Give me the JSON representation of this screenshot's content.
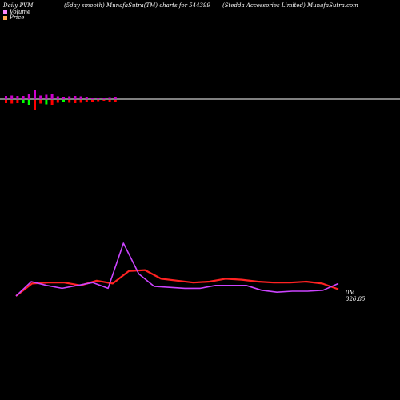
{
  "header": {
    "left": "Daily PVM",
    "center": "(5day smooth) MunafaSutra(TM) charts for 544399",
    "right": "(Stedda Accessories Limited) MunafaSutra.com"
  },
  "legend": {
    "volume": "Volume",
    "price": "Price"
  },
  "labels": {
    "volume": "0M",
    "price": "326.85"
  },
  "colors": {
    "background": "#000000",
    "axis": "#ffffff",
    "volume_up": "#00ff00",
    "volume_down": "#ff0000",
    "volume_neutral": "#cc00cc",
    "price_line": "#ff2222",
    "smooth_line": "#cc44ff",
    "legend_volume": "#ff88ff",
    "legend_price": "#ffaa55"
  },
  "chart_data": [
    {
      "type": "bar",
      "series": [
        {
          "name": "Volume",
          "values": [
            8,
            9,
            8,
            8,
            12,
            24,
            9,
            11,
            12,
            7,
            6,
            7,
            8,
            7,
            6,
            4,
            3,
            2,
            5,
            6
          ]
        }
      ],
      "bar_direction": [
        "down",
        "down",
        "down",
        "up",
        "up",
        "down",
        "down",
        "up",
        "down",
        "down",
        "up",
        "down",
        "down",
        "down",
        "down",
        "down",
        "down",
        "down",
        "down",
        "down"
      ]
    },
    {
      "type": "line",
      "series": [
        {
          "name": "Price",
          "values": [
            325,
            338,
            339,
            339,
            336,
            341,
            338,
            351,
            352,
            343,
            341,
            339,
            340,
            343,
            342,
            340,
            339,
            339,
            340,
            338,
            332
          ]
        },
        {
          "name": "",
          "values": [
            325,
            340,
            336,
            333,
            336,
            339,
            333,
            380,
            348,
            335,
            334,
            333,
            333,
            336,
            336,
            336,
            331,
            329,
            330,
            330,
            331,
            338
          ]
        }
      ],
      "ylim": [
        300,
        400
      ]
    }
  ]
}
